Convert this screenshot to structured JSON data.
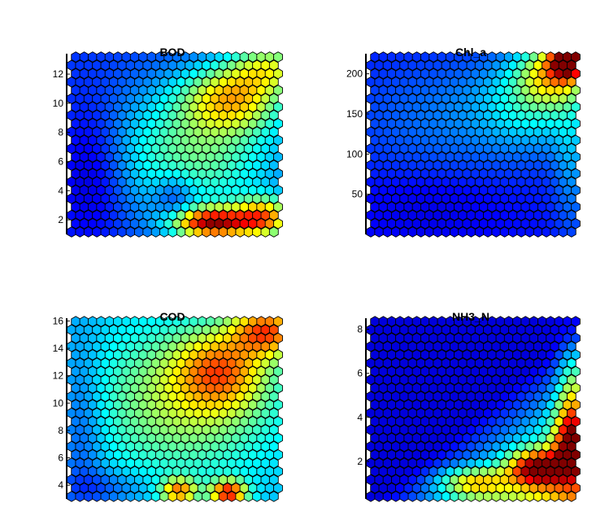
{
  "chart_data": [
    {
      "type": "heatmap",
      "title": "BOD",
      "ylim": [
        1,
        13.4
      ],
      "yticks": [
        2,
        4,
        6,
        8,
        10,
        12
      ],
      "grid_cols": 25,
      "grid_rows": 22,
      "colormap": "jet",
      "value_field": {
        "base": 0.18,
        "components": [
          {
            "cx": 0.78,
            "cy": 0.77,
            "sx": 0.17,
            "sy": 0.13,
            "amp": 0.4
          },
          {
            "cx": 0.68,
            "cy": 0.05,
            "sx": 0.13,
            "sy": 0.06,
            "amp": 0.7
          },
          {
            "cx": 0.93,
            "cy": 0.08,
            "sx": 0.1,
            "sy": 0.08,
            "amp": 0.5
          },
          {
            "cx": 0.6,
            "cy": 0.45,
            "sx": 0.3,
            "sy": 0.26,
            "amp": 0.3
          },
          {
            "cx": 0.97,
            "cy": 0.95,
            "sx": 0.14,
            "sy": 0.1,
            "amp": 0.32
          },
          {
            "cx": 0.1,
            "cy": 0.35,
            "sx": 0.12,
            "sy": 0.28,
            "amp": -0.14
          },
          {
            "cx": 0.5,
            "cy": 0.2,
            "sx": 0.07,
            "sy": 0.1,
            "amp": -0.14
          }
        ]
      }
    },
    {
      "type": "heatmap",
      "title": "Chl_a",
      "ylim": [
        0,
        225
      ],
      "yticks": [
        50,
        100,
        150,
        200
      ],
      "grid_cols": 25,
      "grid_rows": 22,
      "colormap": "jet",
      "value_field": {
        "base": 0.14,
        "components": [
          {
            "cx": 0.97,
            "cy": 0.99,
            "sx": 0.06,
            "sy": 0.07,
            "amp": 0.75
          },
          {
            "cx": 0.9,
            "cy": 0.92,
            "sx": 0.12,
            "sy": 0.12,
            "amp": 0.42
          },
          {
            "cx": 0.8,
            "cy": 0.75,
            "sx": 0.18,
            "sy": 0.18,
            "amp": 0.22
          },
          {
            "cx": 0.98,
            "cy": 0.4,
            "sx": 0.06,
            "sy": 0.3,
            "amp": 0.12
          },
          {
            "cx": 0.4,
            "cy": 0.65,
            "sx": 0.35,
            "sy": 0.25,
            "amp": 0.1
          },
          {
            "cx": 0.3,
            "cy": 0.15,
            "sx": 0.25,
            "sy": 0.15,
            "amp": -0.05
          }
        ]
      }
    },
    {
      "type": "heatmap",
      "title": "COD",
      "ylim": [
        3,
        16.2
      ],
      "yticks": [
        4,
        6,
        8,
        10,
        12,
        14,
        16
      ],
      "grid_cols": 25,
      "grid_rows": 22,
      "colormap": "jet",
      "value_field": {
        "base": 0.3,
        "components": [
          {
            "cx": 0.55,
            "cy": 0.55,
            "sx": 0.32,
            "sy": 0.3,
            "amp": 0.25
          },
          {
            "cx": 0.72,
            "cy": 0.72,
            "sx": 0.15,
            "sy": 0.15,
            "amp": 0.33
          },
          {
            "cx": 0.95,
            "cy": 0.95,
            "sx": 0.12,
            "sy": 0.1,
            "amp": 0.45
          },
          {
            "cx": 0.76,
            "cy": 0.02,
            "sx": 0.06,
            "sy": 0.05,
            "amp": 0.55
          },
          {
            "cx": 0.52,
            "cy": 0.03,
            "sx": 0.06,
            "sy": 0.05,
            "amp": 0.42
          },
          {
            "cx": 0.05,
            "cy": 0.4,
            "sx": 0.08,
            "sy": 0.35,
            "amp": -0.12
          },
          {
            "cx": 0.15,
            "cy": 0.05,
            "sx": 0.15,
            "sy": 0.07,
            "amp": -0.1
          }
        ]
      }
    },
    {
      "type": "heatmap",
      "title": "NH3_N",
      "ylim": [
        0.3,
        8.5
      ],
      "yticks": [
        2,
        4,
        6,
        8
      ],
      "grid_cols": 25,
      "grid_rows": 22,
      "colormap": "jet",
      "value_field": {
        "base": 0.09,
        "diagonal_ramp": 0.85,
        "components": [
          {
            "cx": 0.82,
            "cy": 0.16,
            "sx": 0.1,
            "sy": 0.07,
            "amp": 0.62
          },
          {
            "cx": 0.98,
            "cy": 0.3,
            "sx": 0.06,
            "sy": 0.14,
            "amp": 0.5
          },
          {
            "cx": 0.5,
            "cy": 0.08,
            "sx": 0.12,
            "sy": 0.06,
            "amp": 0.35
          },
          {
            "cx": 0.98,
            "cy": 0.6,
            "sx": 0.05,
            "sy": 0.2,
            "amp": 0.25
          }
        ]
      }
    }
  ]
}
